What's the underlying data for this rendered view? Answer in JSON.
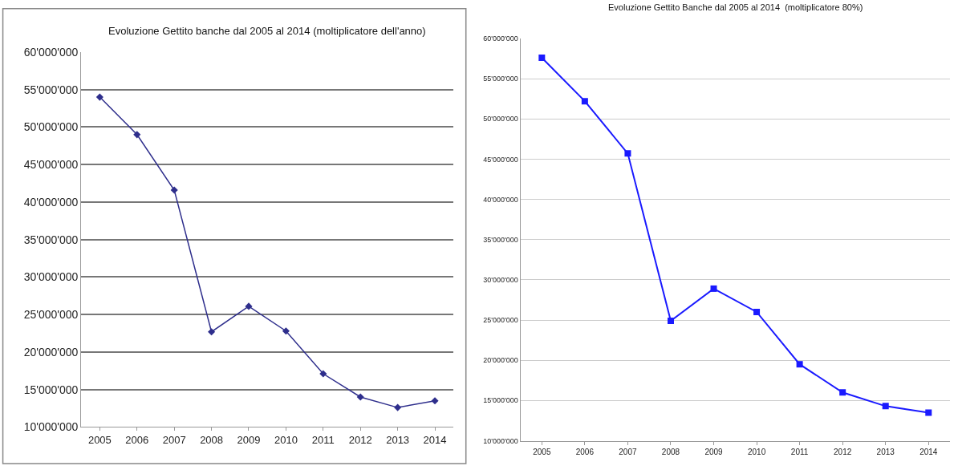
{
  "chart_data": [
    {
      "type": "line",
      "title": "Evoluzione Gettito banche dal 2005 al 2014 (moltiplicatore dell'anno)",
      "categories": [
        "2005",
        "2006",
        "2007",
        "2008",
        "2009",
        "2010",
        "2011",
        "2012",
        "2013",
        "2014"
      ],
      "series": [
        {
          "color": "#2e2e8c",
          "values": [
            54000000,
            49000000,
            41600000,
            22700000,
            26100000,
            22800000,
            17100000,
            14000000,
            12600000,
            13500000
          ]
        }
      ],
      "ylim": [
        10000000,
        60000000
      ],
      "yticks": [
        {
          "value": 10000000,
          "label": "10'000'000"
        },
        {
          "value": 15000000,
          "label": "15'000'000"
        },
        {
          "value": 20000000,
          "label": "20'000'000"
        },
        {
          "value": 25000000,
          "label": "25'000'000"
        },
        {
          "value": 30000000,
          "label": "30'000'000"
        },
        {
          "value": 35000000,
          "label": "35'000'000"
        },
        {
          "value": 40000000,
          "label": "40'000'000"
        },
        {
          "value": 45000000,
          "label": "45'000'000"
        },
        {
          "value": 50000000,
          "label": "50'000'000"
        },
        {
          "value": 55000000,
          "label": "55'000'000"
        },
        {
          "value": 60000000,
          "label": "60'000'000"
        }
      ],
      "grid": "y",
      "marker": "diamond",
      "line_style": "solid"
    },
    {
      "type": "line",
      "title": "Evoluzione Gettito Banche dal 2005 al 2014  (moltiplicatore 80%)",
      "categories": [
        "2005",
        "2006",
        "2007",
        "2008",
        "2009",
        "2010",
        "2011",
        "2012",
        "2013",
        "2014"
      ],
      "series": [
        {
          "color": "#1a1aff",
          "values": [
            57600000,
            52200000,
            45700000,
            24900000,
            28900000,
            26000000,
            19500000,
            16000000,
            14300000,
            13500000
          ]
        }
      ],
      "ylim": [
        10000000,
        60000000
      ],
      "yticks": [
        {
          "value": 10000000,
          "label": "10'000'000"
        },
        {
          "value": 15000000,
          "label": "15'000'000"
        },
        {
          "value": 20000000,
          "label": "20'000'000"
        },
        {
          "value": 25000000,
          "label": "25'000'000"
        },
        {
          "value": 30000000,
          "label": "30'000'000"
        },
        {
          "value": 35000000,
          "label": "35'000'000"
        },
        {
          "value": 40000000,
          "label": "40'000'000"
        },
        {
          "value": 45000000,
          "label": "45'000'000"
        },
        {
          "value": 50000000,
          "label": "50'000'000"
        },
        {
          "value": 55000000,
          "label": "55'000'000"
        },
        {
          "value": 60000000,
          "label": "60'000'000"
        }
      ],
      "grid": "y",
      "marker": "square",
      "line_style": "solid"
    }
  ]
}
